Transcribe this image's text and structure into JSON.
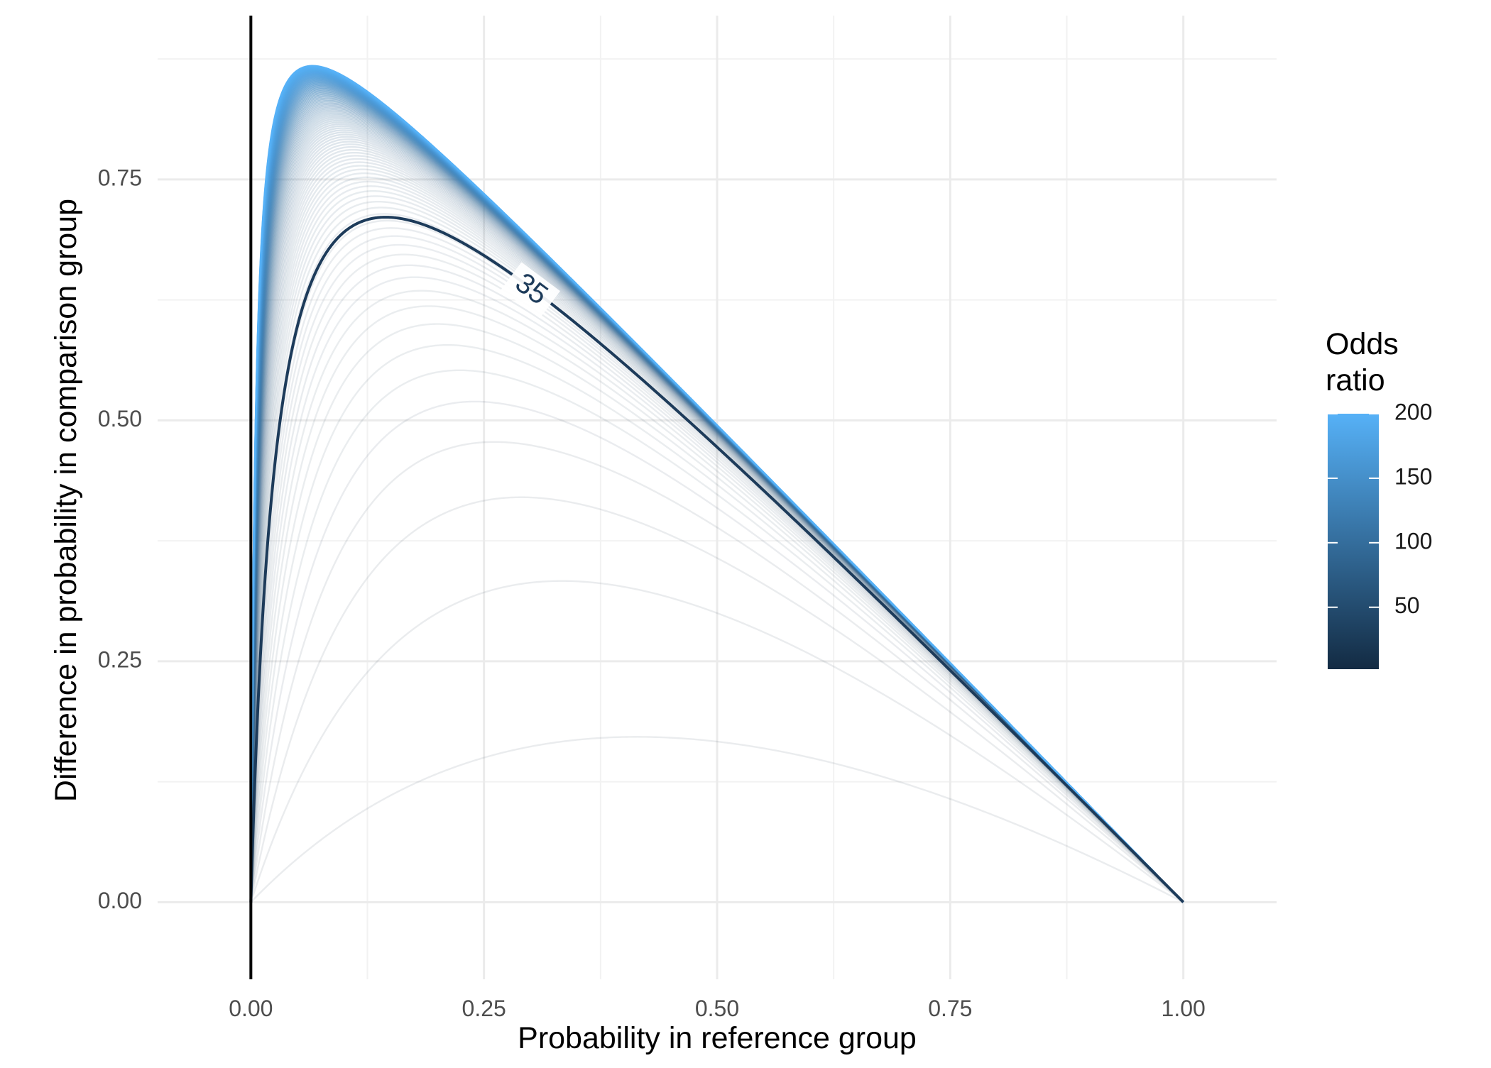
{
  "chart_data": {
    "type": "line",
    "title": "",
    "xlabel": "Probability in reference group",
    "ylabel": "Difference in probability in comparison group",
    "xlim": [
      -0.1,
      1.1
    ],
    "ylim": [
      -0.08,
      0.92
    ],
    "x_ticks": [
      0,
      0.25,
      0.5,
      0.75,
      1
    ],
    "x_tick_labels": [
      "0.00",
      "0.25",
      "0.50",
      "0.75",
      "1.00"
    ],
    "y_ticks": [
      0,
      0.25,
      0.5,
      0.75
    ],
    "y_tick_labels": [
      "0.00",
      "0.25",
      "0.50",
      "0.75"
    ],
    "grid": true,
    "series": {
      "description": "family of curves y = OR*p/(1-p+OR*p) - p, one per odds ratio",
      "odds_ratio_from": 2,
      "odds_ratio_to": 200,
      "odds_ratio_step": 2,
      "highlighted_odds_ratio": 35
    },
    "annotation": {
      "text": "35",
      "x": 0.3,
      "y": 0.635
    },
    "legend": {
      "title_lines": [
        "Odds",
        "ratio"
      ],
      "position": "right",
      "type": "colorbar",
      "range": [
        2,
        200
      ],
      "ticks": [
        50,
        100,
        150,
        200
      ],
      "tick_labels": [
        "50",
        "100",
        "150",
        "200"
      ],
      "color_low": "#132b43",
      "color_high": "#56b1f7"
    },
    "colors": {
      "background": "#ffffff",
      "grid_major": "#ebebeb",
      "grid_minor": "#f2f2f2",
      "faded_curve": "#132b43",
      "highlight_curve": "#1d3b5a",
      "vline": "#000000"
    }
  }
}
